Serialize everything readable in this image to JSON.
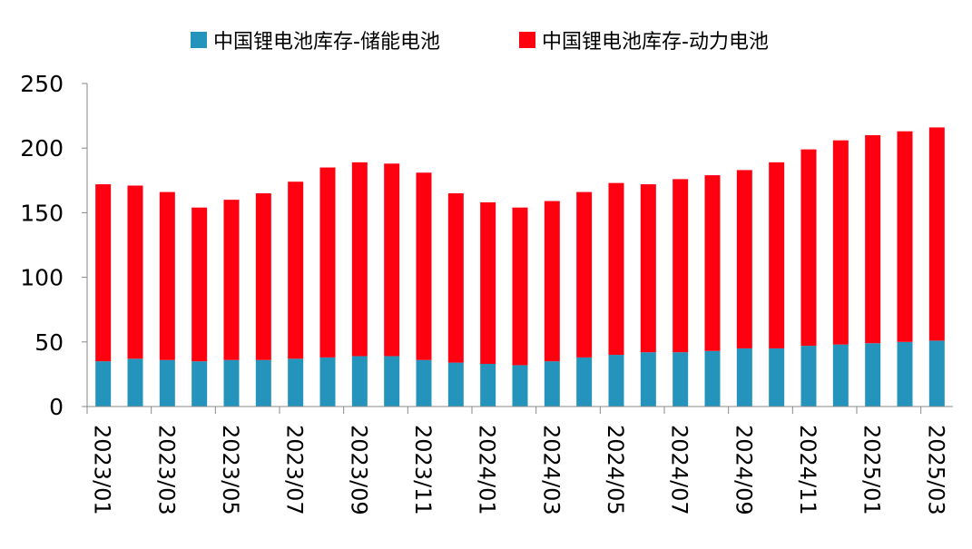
{
  "chart_data": {
    "type": "bar",
    "stacked": true,
    "title": "",
    "xlabel": "",
    "ylabel": "",
    "ylim": [
      0,
      250
    ],
    "yticks": [
      0,
      50,
      100,
      150,
      200,
      250
    ],
    "grid": false,
    "legend_position": "top",
    "categories": [
      "2023/01",
      "2023/02",
      "2023/03",
      "2023/04",
      "2023/05",
      "2023/06",
      "2023/07",
      "2023/08",
      "2023/09",
      "2023/10",
      "2023/11",
      "2023/12",
      "2024/01",
      "2024/02",
      "2024/03",
      "2024/04",
      "2024/05",
      "2024/06",
      "2024/07",
      "2024/08",
      "2024/09",
      "2024/10",
      "2024/11",
      "2024/12",
      "2025/01",
      "2025/02",
      "2025/03"
    ],
    "tick_labels": [
      "2023/01",
      "2023/03",
      "2023/05",
      "2023/07",
      "2023/09",
      "2023/11",
      "2024/01",
      "2024/03",
      "2024/05",
      "2024/07",
      "2024/09",
      "2024/11",
      "2025/01",
      "2025/03"
    ],
    "series": [
      {
        "name": "中国锂电池库存-储能电池",
        "color": "#2494BC",
        "values": [
          35,
          37,
          36,
          35,
          36,
          36,
          37,
          38,
          39,
          39,
          36,
          34,
          33,
          32,
          35,
          38,
          40,
          42,
          42,
          43,
          45,
          45,
          47,
          48,
          49,
          50,
          51
        ]
      },
      {
        "name": "中国锂电池库存-动力电池",
        "color": "#FF0011",
        "values": [
          137,
          134,
          130,
          119,
          124,
          129,
          137,
          147,
          150,
          149,
          145,
          131,
          125,
          122,
          124,
          128,
          133,
          130,
          134,
          136,
          138,
          144,
          152,
          158,
          161,
          163,
          165
        ]
      }
    ]
  }
}
